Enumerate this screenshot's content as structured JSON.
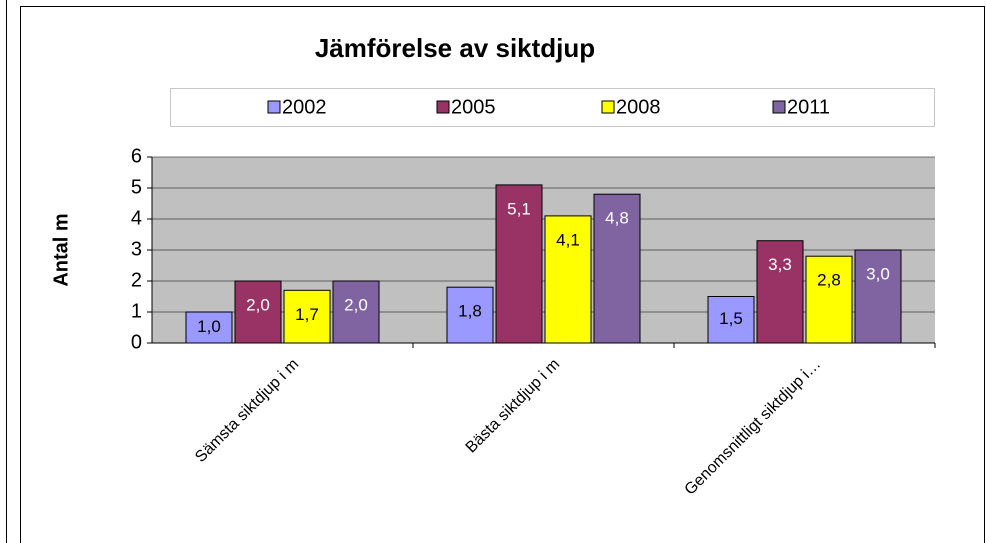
{
  "chart_data": {
    "type": "bar",
    "title": "Jämförelse av siktdjup",
    "y_label": "Antal m",
    "categories": [
      "Sämsta siktdjup i m",
      "Bästa siktdjup i m",
      "Genomsnittligt siktdjup i…"
    ],
    "series": [
      {
        "name": "2002",
        "color": "#9999ff",
        "values": [
          1.0,
          1.8,
          1.5
        ],
        "value_labels": [
          "1,0",
          "1,8",
          "1,5"
        ]
      },
      {
        "name": "2005",
        "color": "#993366",
        "values": [
          2.0,
          5.1,
          3.3
        ],
        "value_labels": [
          "2,0",
          "5,1",
          "3,3"
        ]
      },
      {
        "name": "2008",
        "color": "#ffff00",
        "values": [
          1.7,
          4.1,
          2.8
        ],
        "value_labels": [
          "1,7",
          "4,1",
          "2,8"
        ]
      },
      {
        "name": "2011",
        "color": "#8064a2",
        "values": [
          2.0,
          4.8,
          3.0
        ],
        "value_labels": [
          "2,0",
          "4,8",
          "3,0"
        ]
      }
    ],
    "ylim": [
      0,
      6
    ],
    "yticks": [
      0,
      1,
      2,
      3,
      4,
      5,
      6
    ],
    "grid": true,
    "legend": "top"
  }
}
